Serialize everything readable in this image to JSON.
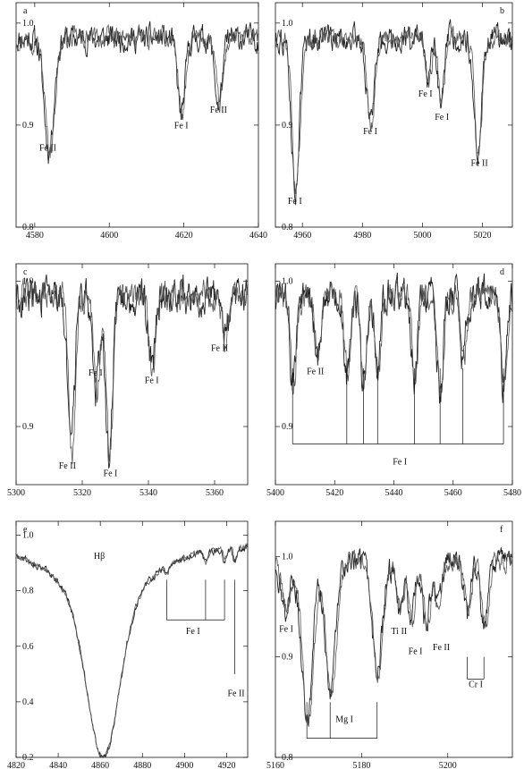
{
  "chart_data": [
    {
      "type": "line",
      "panel_label": "a",
      "xlim": [
        4575,
        4640
      ],
      "ylim": [
        0.8,
        1.02
      ],
      "xticks": [
        4580,
        4600,
        4620,
        4640
      ],
      "yticks": [
        0.8,
        0.9,
        1.0
      ],
      "ytick_labels": [
        "0.8",
        "0.9",
        "1.0"
      ],
      "continuum": 0.985,
      "lines": [
        {
          "label": "Fe II",
          "x": 4583.8,
          "depth": 0.11,
          "width": 1.3
        },
        {
          "label": "Fe I",
          "x": 4619.3,
          "depth": 0.075,
          "width": 1.0
        },
        {
          "label": "Fe II",
          "x": 4629.3,
          "depth": 0.065,
          "width": 1.0
        }
      ],
      "annotations": [
        {
          "text": "Fe II",
          "x": 4583.5,
          "y": 0.875
        },
        {
          "text": "Fe I",
          "x": 4619.3,
          "y": 0.897
        },
        {
          "text": "Fe II",
          "x": 4629.3,
          "y": 0.912
        }
      ],
      "markers": []
    },
    {
      "type": "line",
      "panel_label": "b",
      "xlim": [
        4951,
        5030
      ],
      "ylim": [
        0.8,
        1.02
      ],
      "xticks": [
        4960,
        4980,
        5000,
        5020
      ],
      "yticks": [
        0.8,
        0.9,
        1.0
      ],
      "ytick_labels": [
        "0.8",
        "0.9",
        "1.0"
      ],
      "continuum": 0.985,
      "lines": [
        {
          "label": "Fe I",
          "x": 4957.6,
          "depth": 0.15,
          "width": 1.3
        },
        {
          "label": "Fe I",
          "x": 4982.6,
          "depth": 0.085,
          "width": 1.2
        },
        {
          "label": "Fe I",
          "x": 5001.9,
          "depth": 0.04,
          "width": 1.0
        },
        {
          "label": "Fe I",
          "x": 5006.1,
          "depth": 0.07,
          "width": 1.0
        },
        {
          "label": "Fe II",
          "x": 5018.4,
          "depth": 0.115,
          "width": 1.2
        }
      ],
      "annotations": [
        {
          "text": "Fe I",
          "x": 4957.5,
          "y": 0.823
        },
        {
          "text": "Fe I",
          "x": 4982.6,
          "y": 0.891
        },
        {
          "text": "Fe I",
          "x": 5001.0,
          "y": 0.928
        },
        {
          "text": "Fe I",
          "x": 5006.5,
          "y": 0.905
        },
        {
          "text": "Fe II",
          "x": 5019.0,
          "y": 0.86
        }
      ],
      "markers": []
    },
    {
      "type": "line",
      "panel_label": "c",
      "xlim": [
        5300,
        5370
      ],
      "ylim": [
        0.86,
        1.012
      ],
      "xticks": [
        5300,
        5320,
        5340,
        5360
      ],
      "yticks": [
        0.9,
        1.0
      ],
      "ytick_labels": [
        "0.9",
        "1.0"
      ],
      "continuum": 0.99,
      "lines": [
        {
          "label": "Fe II",
          "x": 5316.6,
          "depth": 0.11,
          "width": 1.0
        },
        {
          "label": "Fe I",
          "x": 5324.2,
          "depth": 0.065,
          "width": 1.0
        },
        {
          "label": "Fe I",
          "x": 5328.0,
          "depth": 0.11,
          "width": 1.0
        },
        {
          "label": "Fe I",
          "x": 5341.0,
          "depth": 0.05,
          "width": 1.0
        },
        {
          "label": "Fe II",
          "x": 5362.9,
          "depth": 0.03,
          "width": 1.0
        }
      ],
      "annotations": [
        {
          "text": "Fe II",
          "x": 5315.5,
          "y": 0.871
        },
        {
          "text": "Fe I",
          "x": 5324.0,
          "y": 0.935
        },
        {
          "text": "Fe I",
          "x": 5328.5,
          "y": 0.866
        },
        {
          "text": "Fe I",
          "x": 5341.0,
          "y": 0.93
        },
        {
          "text": "Fe II",
          "x": 5361.5,
          "y": 0.952
        }
      ],
      "markers": []
    },
    {
      "type": "line",
      "panel_label": "d",
      "xlim": [
        5400,
        5480
      ],
      "ylim": [
        0.86,
        1.012
      ],
      "xticks": [
        5400,
        5420,
        5440,
        5460,
        5480
      ],
      "yticks": [
        0.9,
        1.0
      ],
      "ytick_labels": [
        "0.9",
        "1.0"
      ],
      "continuum": 0.99,
      "lines": [
        {
          "label": "Fe I",
          "x": 5405.8,
          "depth": 0.06,
          "width": 1.0
        },
        {
          "label": "Fe II",
          "x": 5414.1,
          "depth": 0.045,
          "width": 1.0
        },
        {
          "label": "Fe I",
          "x": 5424.1,
          "depth": 0.055,
          "width": 1.0
        },
        {
          "label": "Fe I",
          "x": 5429.7,
          "depth": 0.06,
          "width": 1.0
        },
        {
          "label": "Fe I",
          "x": 5434.5,
          "depth": 0.05,
          "width": 1.0
        },
        {
          "label": "Fe I",
          "x": 5446.9,
          "depth": 0.055,
          "width": 1.0
        },
        {
          "label": "Fe I",
          "x": 5455.6,
          "depth": 0.07,
          "width": 1.0
        },
        {
          "label": "Fe I",
          "x": 5463.3,
          "depth": 0.045,
          "width": 1.0
        },
        {
          "label": "Fe I",
          "x": 5477.0,
          "depth": 0.06,
          "width": 1.0
        }
      ],
      "annotations": [
        {
          "text": "Fe II",
          "x": 5413.5,
          "y": 0.936
        },
        {
          "text": "Fe I",
          "x": 5442.0,
          "y": 0.874
        }
      ],
      "markers": [
        {
          "kind": "bracket",
          "xs": [
            5405.8,
            5424.1,
            5429.7,
            5434.5,
            5446.9,
            5455.6,
            5463.3,
            5477.0
          ],
          "top": 0.94,
          "bottom": 0.888
        }
      ]
    },
    {
      "type": "line",
      "panel_label": "e",
      "xlim": [
        4820,
        4930
      ],
      "ylim": [
        0.2,
        1.05
      ],
      "xticks": [
        4820,
        4840,
        4860,
        4880,
        4900,
        4920
      ],
      "yticks": [
        0.2,
        0.4,
        0.6,
        0.8,
        1.0
      ],
      "ytick_labels": [
        "0.2",
        "0.4",
        "0.6",
        "0.8",
        "1.0"
      ],
      "continuum": 0.97,
      "lines": [
        {
          "label": "Fe I",
          "x": 4891.5,
          "depth": 0.03,
          "width": 0.8
        },
        {
          "label": "Fe I",
          "x": 4910.0,
          "depth": 0.04,
          "width": 0.8
        },
        {
          "label": "Fe I",
          "x": 4919.0,
          "depth": 0.04,
          "width": 0.8
        },
        {
          "label": "Fe II",
          "x": 4923.9,
          "depth": 0.05,
          "width": 0.8
        }
      ],
      "annotations": [
        {
          "text": "Hβ",
          "x": 4859.5,
          "y": 0.915
        },
        {
          "text": "Fe I",
          "x": 4904.0,
          "y": 0.645
        },
        {
          "text": "Fe II",
          "x": 4924.5,
          "y": 0.42
        }
      ],
      "markers": [
        {
          "kind": "bracket-down",
          "xs": [
            4891.5,
            4910.0,
            4919.0
          ],
          "top": 0.84,
          "bottom": 0.695
        },
        {
          "kind": "tick",
          "x": 4923.9,
          "top": 0.84,
          "bottom": 0.5
        }
      ]
    },
    {
      "type": "line",
      "panel_label": "f",
      "xlim": [
        5160,
        5215
      ],
      "ylim": [
        0.8,
        1.035
      ],
      "xticks": [
        5160,
        5180,
        5200
      ],
      "yticks": [
        0.8,
        0.9,
        1.0
      ],
      "ytick_labels": [
        "0.8",
        "0.9",
        "1.0"
      ],
      "continuum": 0.995,
      "lines": [
        {
          "label": "Mg I",
          "x": 5167.3,
          "depth": 0.16,
          "width": 1.3
        },
        {
          "label": "Mg I",
          "x": 5172.7,
          "depth": 0.13,
          "width": 1.2
        },
        {
          "label": "Mg I",
          "x": 5183.6,
          "depth": 0.11,
          "width": 1.2
        },
        {
          "label": "Fe I",
          "x": 5162.3,
          "depth": 0.05,
          "width": 1.0
        },
        {
          "label": "Ti II",
          "x": 5188.7,
          "depth": 0.05,
          "width": 0.8
        },
        {
          "label": "Fe I",
          "x": 5191.5,
          "depth": 0.06,
          "width": 0.8
        },
        {
          "label": "Fe I",
          "x": 5194.9,
          "depth": 0.065,
          "width": 0.8
        },
        {
          "label": "Fe II",
          "x": 5197.6,
          "depth": 0.045,
          "width": 0.8
        },
        {
          "label": "Cr I",
          "x": 5204.5,
          "depth": 0.055,
          "width": 0.8
        },
        {
          "label": "Cr I",
          "x": 5208.4,
          "depth": 0.065,
          "width": 0.8
        }
      ],
      "annotations": [
        {
          "text": "Fe I",
          "x": 5162.5,
          "y": 0.925
        },
        {
          "text": "Ti II",
          "x": 5188.7,
          "y": 0.923
        },
        {
          "text": "Fe I",
          "x": 5192.5,
          "y": 0.903
        },
        {
          "text": "Fe II",
          "x": 5198.5,
          "y": 0.907
        },
        {
          "text": "Cr I",
          "x": 5206.5,
          "y": 0.87
        },
        {
          "text": "Mg I",
          "x": 5176.0,
          "y": 0.835
        }
      ],
      "markers": [
        {
          "kind": "bracket",
          "xs": [
            5167.3,
            5172.7,
            5183.6
          ],
          "top": 0.855,
          "bottom": 0.819
        },
        {
          "kind": "bracket",
          "xs": [
            5204.5,
            5208.4
          ],
          "top": 0.9,
          "bottom": 0.878
        }
      ]
    }
  ]
}
